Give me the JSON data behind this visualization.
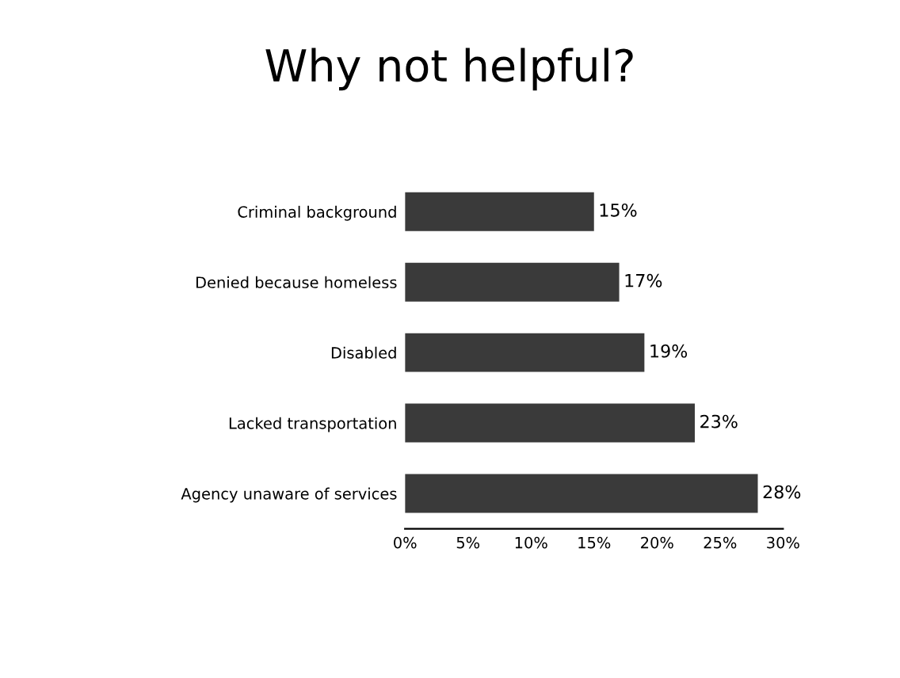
{
  "chart_data": {
    "type": "bar",
    "orientation": "horizontal",
    "title": "Why not helpful?",
    "categories": [
      "Criminal background",
      "Denied because homeless",
      "Disabled",
      "Lacked transportation",
      "Agency unaware of services"
    ],
    "values": [
      15,
      17,
      19,
      23,
      28
    ],
    "value_labels": [
      "15%",
      "17%",
      "19%",
      "23%",
      "28%"
    ],
    "color": "#3a3a3a",
    "xlim": [
      0,
      30
    ],
    "xticks": [
      {
        "value": 0,
        "label": "0%"
      },
      {
        "value": 5,
        "label": "5%"
      },
      {
        "value": 10,
        "label": "10%"
      },
      {
        "value": 15,
        "label": "15%"
      },
      {
        "value": 20,
        "label": "20%"
      },
      {
        "value": 25,
        "label": "25%"
      },
      {
        "value": 30,
        "label": "30%"
      }
    ],
    "grid": false,
    "legend": false
  }
}
